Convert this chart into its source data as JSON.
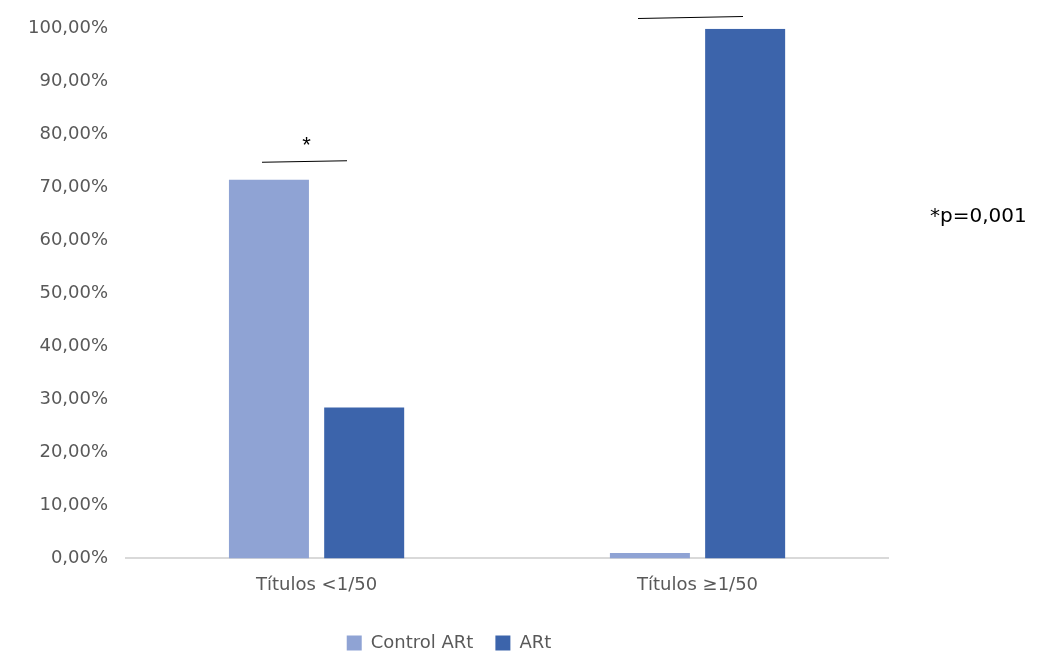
{
  "chart_data": {
    "type": "bar",
    "categories": [
      "Títulos <1/50",
      "Títulos ≥1/50"
    ],
    "series": [
      {
        "name": "Control ARt",
        "color": "#8fa3d4",
        "values": [
          71.5,
          1
        ]
      },
      {
        "name": "ARt",
        "color": "#3c64ab",
        "values": [
          28.5,
          100
        ]
      }
    ],
    "ylim": [
      0,
      100
    ],
    "yticks": [
      {
        "value": 0,
        "label": "0,00%"
      },
      {
        "value": 10,
        "label": "10,00%"
      },
      {
        "value": 20,
        "label": "20,00%"
      },
      {
        "value": 30,
        "label": "30,00%"
      },
      {
        "value": 40,
        "label": "40,00%"
      },
      {
        "value": 50,
        "label": "50,00%"
      },
      {
        "value": 60,
        "label": "60,00%"
      },
      {
        "value": 70,
        "label": "70,00%"
      },
      {
        "value": 80,
        "label": "80,00%"
      },
      {
        "value": 90,
        "label": "90,00%"
      },
      {
        "value": 100,
        "label": "100,00%"
      }
    ],
    "grid": false,
    "legend": "bottom",
    "annotations": [
      "*",
      "*p=0,001"
    ]
  }
}
